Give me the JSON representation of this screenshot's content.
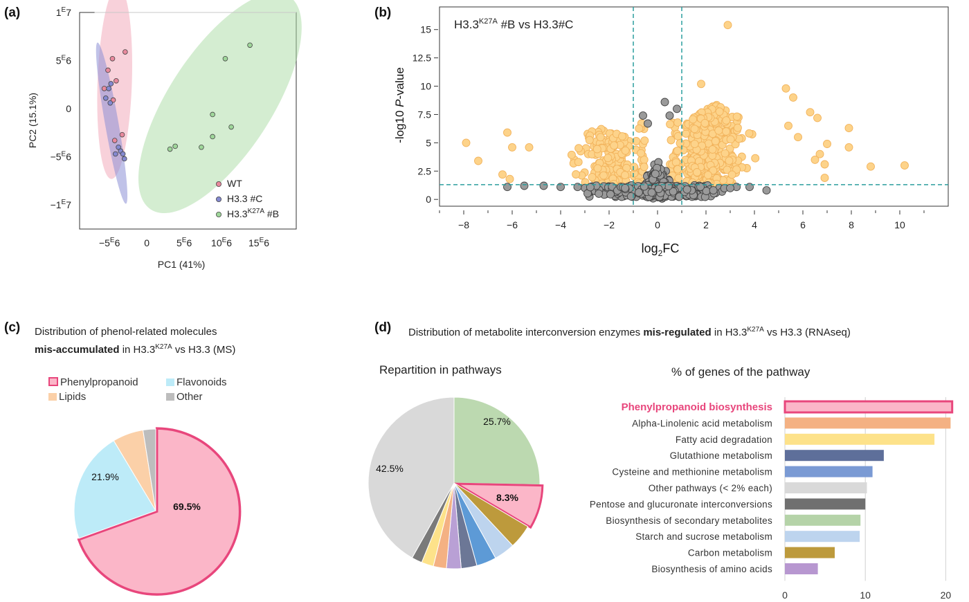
{
  "panel_labels": {
    "a": "(a)",
    "b": "(b)",
    "c": "(c)",
    "d": "(d)"
  },
  "colors": {
    "wt": "#f2a3b6",
    "h33c": "#8c8fd6",
    "k27a": "#a9dba4",
    "sig": "#fdd38a",
    "sig_edge": "#f2b35c",
    "nonsig": "#9a9a9a",
    "thresh": "#2a9d9d",
    "phenyl": "#fbb6c8",
    "phenyl_edge": "#e8467c",
    "flavonoids": "#bdebf8",
    "lipids": "#fbd0a8",
    "other": "#bdbdbd"
  },
  "chart_data": [
    {
      "type": "scatter",
      "panel": "a",
      "xlabel": "PC1 (41%)",
      "ylabel": "PC2 (15.1%)",
      "xlim": [
        -9000000,
        20000000
      ],
      "ylim": [
        -12500000,
        10000000
      ],
      "xticks": [
        {
          "value": -5000000,
          "label": "−5",
          "exp": "E",
          "suffix": "6"
        },
        {
          "value": 0,
          "label": "0",
          "exp": "",
          "suffix": ""
        },
        {
          "value": 5000000,
          "label": "5",
          "exp": "E",
          "suffix": "6"
        },
        {
          "value": 10000000,
          "label": "10",
          "exp": "E",
          "suffix": "6"
        },
        {
          "value": 15000000,
          "label": "15",
          "exp": "E",
          "suffix": "6"
        }
      ],
      "yticks": [
        {
          "value": 10000000,
          "label": "1",
          "exp": "E",
          "suffix": "7"
        },
        {
          "value": 5000000,
          "label": "5",
          "exp": "E",
          "suffix": "6"
        },
        {
          "value": 0,
          "label": "0",
          "exp": "",
          "suffix": ""
        },
        {
          "value": -5000000,
          "label": "−5",
          "exp": "E",
          "suffix": "6"
        },
        {
          "value": -10000000,
          "label": "−1",
          "exp": "E",
          "suffix": "7"
        }
      ],
      "series": [
        {
          "name": "WT",
          "color": "#e87f95",
          "points": [
            [
              -4600000,
              5200000
            ],
            [
              -2900000,
              5900000
            ],
            [
              -5200000,
              4000000
            ],
            [
              -4100000,
              2900000
            ],
            [
              -5700000,
              2100000
            ],
            [
              -4500000,
              900000
            ],
            [
              -4300000,
              -3300000
            ],
            [
              -3300000,
              -2700000
            ]
          ]
        },
        {
          "name": "H3.3 #C",
          "name_sup": "",
          "color": "#7b82cc",
          "points": [
            [
              -4800000,
              2600000
            ],
            [
              -5100000,
              2100000
            ],
            [
              -5500000,
              1100000
            ],
            [
              -4900000,
              600000
            ],
            [
              -3800000,
              -4000000
            ],
            [
              -3500000,
              -4400000
            ],
            [
              -3200000,
              -4700000
            ],
            [
              -4200000,
              -4700000
            ],
            [
              -3000000,
              -5200000
            ]
          ]
        },
        {
          "name_base": "H3.3",
          "name_sup": "K27A",
          "name_tail": " #B",
          "color": "#8ccc86",
          "points": [
            [
              10500000,
              5200000
            ],
            [
              13800000,
              6600000
            ],
            [
              8800000,
              -600000
            ],
            [
              11300000,
              -1900000
            ],
            [
              8800000,
              -2900000
            ],
            [
              3800000,
              -3900000
            ],
            [
              3100000,
              -4200000
            ],
            [
              7300000,
              -4000000
            ]
          ]
        }
      ],
      "ellipses": [
        {
          "group": "WT",
          "cx": -4300000,
          "cy": 2700000,
          "rx": 2300000,
          "ry": 10000000,
          "angle": 2
        },
        {
          "group": "H3.3 #C",
          "cx": -4700000,
          "cy": -1500000,
          "rx": 900000,
          "ry": 8500000,
          "angle": -10
        },
        {
          "group": "H3.3K27A #B",
          "cx": 9800000,
          "cy": 600000,
          "rx": 6900000,
          "ry": 13200000,
          "angle": 33
        }
      ]
    },
    {
      "type": "scatter",
      "panel": "b",
      "title_base": "H3.3",
      "title_sup": "K27A",
      "title_tail": " #B vs H3.3#C",
      "xlabel_base": "log",
      "xlabel_sub": "2",
      "xlabel_tail": "FC",
      "ylabel_base": "-log10 ",
      "ylabel_italic": "P",
      "ylabel_tail": "-value",
      "xlim": [
        -9,
        12
      ],
      "ylim": [
        -0.6,
        17
      ],
      "xticks": [
        -8,
        -6,
        -4,
        -2,
        0,
        2,
        4,
        6,
        8,
        10
      ],
      "yticks": [
        0,
        2.5,
        5,
        7.5,
        10,
        12.5,
        15
      ],
      "ytick_labels": [
        "0",
        "2.5",
        "5",
        "7.5",
        "10",
        "12.5",
        "15"
      ],
      "thresholds": {
        "x": [
          -1,
          1
        ],
        "y": 1.3
      },
      "highlight_points": [
        [
          2.9,
          15.4
        ],
        [
          1.8,
          10.2
        ],
        [
          5.3,
          9.8
        ],
        [
          5.6,
          9.0
        ],
        [
          -7.9,
          5.0
        ],
        [
          -6.2,
          5.9
        ],
        [
          -6.0,
          4.6
        ],
        [
          -5.3,
          4.6
        ],
        [
          -7.4,
          3.4
        ],
        [
          -6.4,
          2.2
        ],
        [
          -6.1,
          1.8
        ],
        [
          7.9,
          6.3
        ],
        [
          7.9,
          4.6
        ],
        [
          6.7,
          4.0
        ],
        [
          8.8,
          2.9
        ],
        [
          10.2,
          3.0
        ],
        [
          6.3,
          7.7
        ],
        [
          6.6,
          7.2
        ],
        [
          7.0,
          4.9
        ],
        [
          6.5,
          3.5
        ],
        [
          5.4,
          6.5
        ],
        [
          5.8,
          5.5
        ],
        [
          6.9,
          1.9
        ],
        [
          6.9,
          3.1
        ]
      ],
      "nonsig_edge_points": [
        [
          -6.2,
          1.1
        ],
        [
          -5.5,
          1.2
        ],
        [
          -4.7,
          1.2
        ],
        [
          -4.0,
          1.1
        ],
        [
          -3.3,
          1.1
        ],
        [
          3.0,
          1.0
        ],
        [
          3.8,
          1.1
        ],
        [
          4.5,
          0.8
        ],
        [
          0.3,
          8.6
        ],
        [
          0.5,
          7.4
        ],
        [
          0.8,
          8.0
        ],
        [
          -0.6,
          7.4
        ],
        [
          -0.4,
          6.7
        ]
      ]
    },
    {
      "type": "pie",
      "panel": "c",
      "title_line1": "Distribution of phenol-related molecules",
      "title_line2_bold": "mis-accumulated",
      "title_line2_base": " in H3.3",
      "title_line2_sup": "K27A",
      "title_line2_tail": " vs H3.3 (MS)",
      "legend": [
        "Phenylpropanoid",
        "Flavonoids",
        "Lipids",
        "Other"
      ],
      "slices": [
        {
          "label": "Phenylpropanoid",
          "value": 69.5,
          "text": "69.5%",
          "color": "#fbb6c8",
          "highlight": true
        },
        {
          "label": "Flavonoids",
          "value": 21.9,
          "text": "21.9%",
          "color": "#bdebf8"
        },
        {
          "label": "Lipids",
          "value": 6.1,
          "text": "",
          "color": "#fbd0a8"
        },
        {
          "label": "Other",
          "value": 2.5,
          "text": "",
          "color": "#bdbdbd"
        }
      ]
    },
    {
      "type": "pie",
      "panel": "d",
      "title": "Repartition in pathways",
      "slices": [
        {
          "value": 25.7,
          "text": "25.7%",
          "color": "#bcd9b0"
        },
        {
          "value": 8.3,
          "text": "8.3%",
          "color": "#fbb6c8",
          "highlight": true
        },
        {
          "value": 4.6,
          "text": "",
          "color": "#bd9a3c"
        },
        {
          "value": 4.0,
          "text": "",
          "color": "#bdd4ee"
        },
        {
          "value": 3.8,
          "text": "",
          "color": "#5d9ad6"
        },
        {
          "value": 3.0,
          "text": "",
          "color": "#6c7796"
        },
        {
          "value": 2.8,
          "text": "",
          "color": "#b9a0d5"
        },
        {
          "value": 2.5,
          "text": "",
          "color": "#f4b183"
        },
        {
          "value": 2.3,
          "text": "",
          "color": "#fde28a"
        },
        {
          "value": 2.0,
          "text": "",
          "color": "#7a7a7a"
        },
        {
          "value": 42.5,
          "text": "42.5%",
          "color": "#d9d9d9"
        }
      ]
    },
    {
      "type": "bar",
      "panel": "d",
      "orientation": "horizontal",
      "title": "% of genes of the pathway",
      "xlim": [
        0,
        21
      ],
      "xticks": [
        0,
        10,
        20
      ],
      "categories": [
        "Phenylpropanoid biosynthesis",
        "Alpha-Linolenic acid metabolism",
        "Fatty acid degradation",
        "Glutathione metabolism",
        "Cysteine and methionine metabolism",
        "Other pathways (< 2% each)",
        "Pentose and glucuronate interconversions",
        "Biosynthesis of secondary metabolites",
        "Starch and sucrose metabolism",
        "Carbon metabolism",
        "Biosynthesis of amino acids"
      ],
      "values": [
        20.8,
        20.6,
        18.6,
        12.3,
        10.9,
        10.2,
        10.0,
        9.4,
        9.3,
        6.2,
        4.1
      ],
      "bar_colors": [
        "#fbb6c8",
        "#f4b183",
        "#fde28a",
        "#5e6f9a",
        "#7a9ad4",
        "#d9d9d9",
        "#707070",
        "#b5d3a8",
        "#bdd4ee",
        "#bd9a3c",
        "#b797d0"
      ],
      "highlight_index": 0
    }
  ],
  "panel_d_header": {
    "text_base": "Distribution of metabolite interconversion enzymes ",
    "text_bold": "mis-regulated",
    "text_mid": " in H3.3",
    "text_sup": "K27A",
    "text_tail": " vs H3.3 (RNAseq)"
  }
}
